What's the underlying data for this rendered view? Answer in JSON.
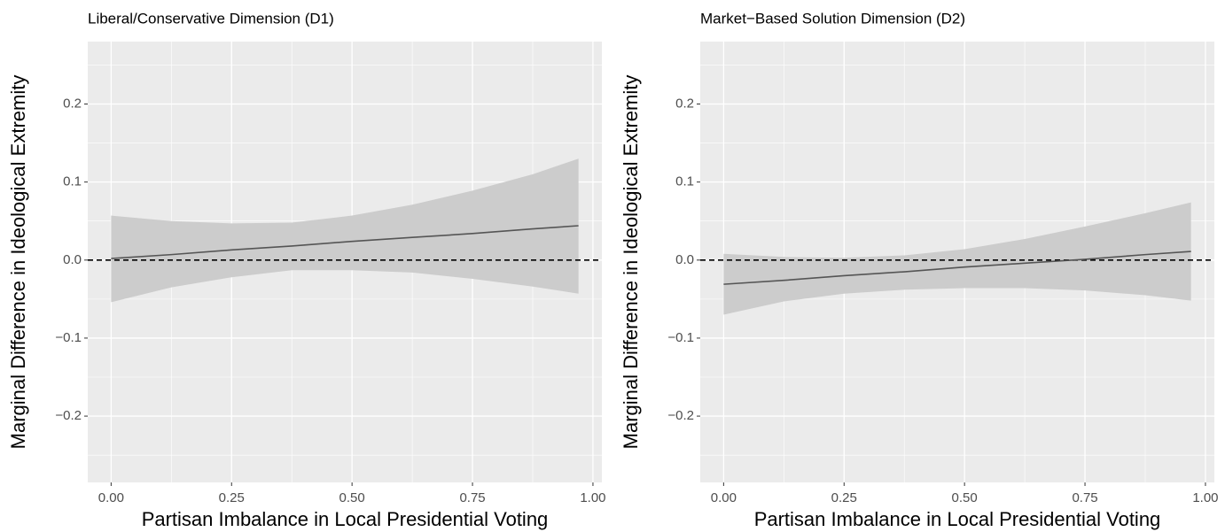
{
  "chart_data": [
    {
      "type": "line",
      "title": "Liberal/Conservative Dimension (D1)",
      "xlabel": "Partisan Imbalance in Local Presidential Voting",
      "ylabel": "Marginal Difference in Ideological Extremity",
      "x": [
        0,
        0.125,
        0.25,
        0.375,
        0.5,
        0.625,
        0.75,
        0.875,
        0.97
      ],
      "values": [
        0.002,
        0.007,
        0.013,
        0.018,
        0.024,
        0.029,
        0.034,
        0.04,
        0.044
      ],
      "lower": [
        -0.054,
        -0.035,
        -0.022,
        -0.013,
        -0.013,
        -0.016,
        -0.024,
        -0.034,
        -0.043
      ],
      "upper": [
        0.057,
        0.05,
        0.047,
        0.048,
        0.057,
        0.071,
        0.089,
        0.11,
        0.13
      ],
      "color": "#555555",
      "band_color": "#cccccc",
      "hline": 0,
      "xlim": [
        -0.0485,
        1.0185
      ],
      "ylim": [
        -0.285,
        0.28
      ],
      "xticks": [
        {
          "value": 0,
          "label": "0.00"
        },
        {
          "value": 0.25,
          "label": "0.25"
        },
        {
          "value": 0.5,
          "label": "0.50"
        },
        {
          "value": 0.75,
          "label": "0.75"
        },
        {
          "value": 1,
          "label": "1.00"
        }
      ],
      "yticks": [
        {
          "value": -0.2,
          "label": "−0.2"
        },
        {
          "value": -0.1,
          "label": "−0.1"
        },
        {
          "value": 0,
          "label": "0.0"
        },
        0.1,
        0.2
      ],
      "xminor": [
        0.125,
        0.375,
        0.625,
        0.875
      ],
      "yminor": [
        -0.25,
        -0.15,
        -0.05,
        0.05,
        0.15,
        0.25
      ],
      "grid": true
    },
    {
      "type": "line",
      "title": "Market−Based Solution Dimension (D2)",
      "xlabel": "Partisan Imbalance in Local Presidential Voting",
      "ylabel": "Marginal Difference in Ideological Extremity",
      "x": [
        0,
        0.125,
        0.25,
        0.375,
        0.5,
        0.625,
        0.75,
        0.875,
        0.97
      ],
      "values": [
        -0.031,
        -0.026,
        -0.02,
        -0.015,
        -0.009,
        -0.004,
        0.001,
        0.007,
        0.011
      ],
      "lower": [
        -0.07,
        -0.053,
        -0.043,
        -0.038,
        -0.036,
        -0.036,
        -0.039,
        -0.045,
        -0.052
      ],
      "upper": [
        0.008,
        0.004,
        0.003,
        0.006,
        0.014,
        0.027,
        0.043,
        0.06,
        0.074
      ],
      "color": "#555555",
      "band_color": "#cccccc",
      "hline": 0,
      "xlim": [
        -0.0485,
        1.0185
      ],
      "ylim": [
        -0.285,
        0.28
      ],
      "xticks": [
        {
          "value": 0,
          "label": "0.00"
        },
        {
          "value": 0.25,
          "label": "0.25"
        },
        {
          "value": 0.5,
          "label": "0.50"
        },
        {
          "value": 0.75,
          "label": "0.75"
        },
        {
          "value": 1,
          "label": "1.00"
        }
      ],
      "yticks": [
        {
          "value": -0.2,
          "label": "−0.2"
        },
        {
          "value": -0.1,
          "label": "−0.1"
        },
        {
          "value": 0,
          "label": "0.0"
        },
        0.1,
        0.2
      ],
      "xminor": [
        0.125,
        0.375,
        0.625,
        0.875
      ],
      "yminor": [
        -0.25,
        -0.15,
        -0.05,
        0.05,
        0.15,
        0.25
      ],
      "grid": true
    }
  ]
}
